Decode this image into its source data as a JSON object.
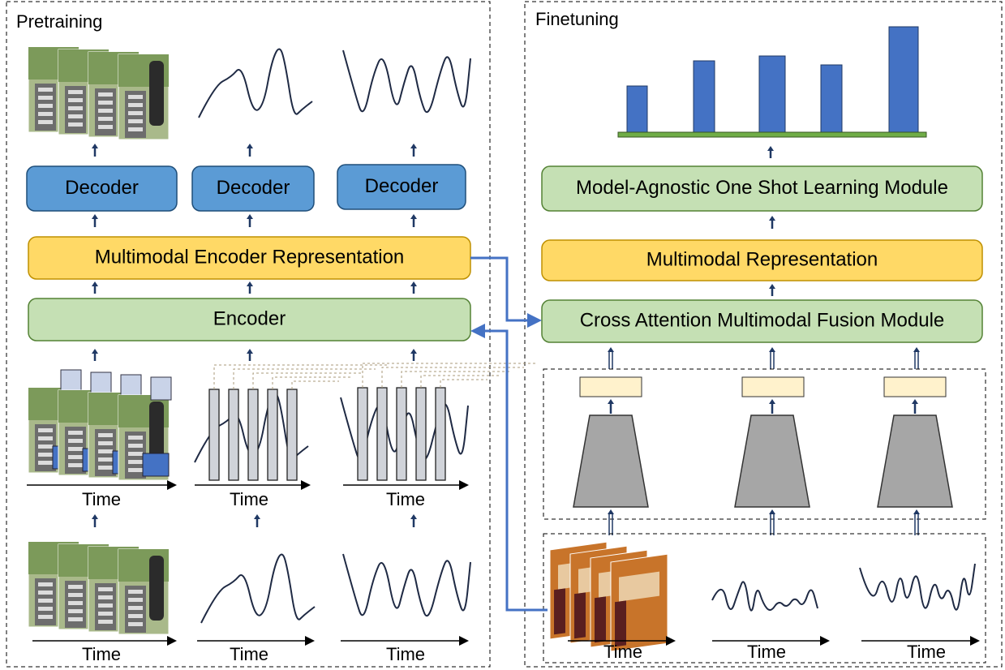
{
  "pretraining": {
    "title": "Pretraining",
    "decoders": [
      "Decoder",
      "Decoder",
      "Decoder"
    ],
    "representation": "Multimodal Encoder Representation",
    "encoder": "Encoder",
    "time_labels": [
      "Time",
      "Time",
      "Time",
      "Time",
      "Time",
      "Time"
    ]
  },
  "finetuning": {
    "title": "Finetuning",
    "module": "Model-Agnostic One Shot Learning Module",
    "representation": "Multimodal Representation",
    "fusion": "Cross Attention Multimodal Fusion Module",
    "time_labels": [
      "Time",
      "Time",
      "Time"
    ]
  }
}
